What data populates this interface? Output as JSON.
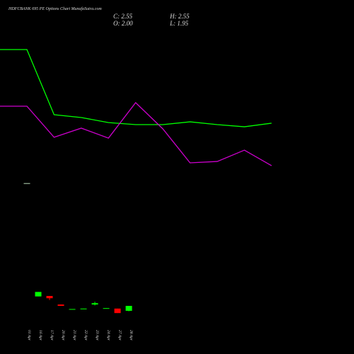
{
  "chart_data": {
    "type": "candlestick",
    "title": "HDFCBANK 695 PE Options  Chart MunafaSutra.com",
    "ohlc_labels": {
      "close": "C: 2.55",
      "high": "H: 2.55",
      "open": "O: 2.00",
      "low": "L: 1.95"
    },
    "categories": [
      "01 Apr",
      "16 Apr",
      "17 Apr",
      "20 Apr",
      "21 Apr",
      "22 Apr",
      "23 Apr",
      "24 Apr",
      "27 Apr",
      "28 Apr"
    ],
    "open": [
      16.2,
      3.6,
      3.65,
      2.7,
      2.15,
      2.2,
      2.7,
      2.25,
      2.25,
      2.0
    ],
    "high": [
      16.2,
      4.1,
      3.65,
      2.7,
      2.2,
      2.25,
      3.0,
      2.3,
      2.25,
      2.55
    ],
    "low": [
      16.2,
      3.6,
      3.2,
      2.55,
      2.15,
      2.2,
      2.6,
      2.25,
      1.75,
      1.95
    ],
    "close": [
      16.2,
      4.1,
      3.4,
      2.55,
      2.2,
      2.25,
      2.85,
      2.3,
      1.75,
      2.55
    ],
    "up_color": "#00ff00",
    "down_color": "#ff0000",
    "series": [
      {
        "color": "#00ff00",
        "values": [
          31.06,
          23.81,
          23.5,
          22.94,
          22.71,
          22.71,
          23.02,
          22.71,
          22.47,
          22.87
        ]
      },
      {
        "color": "#cc00cc",
        "values": [
          24.76,
          21.3,
          22.32,
          21.21,
          25.15,
          22.24,
          18.46,
          18.61,
          19.87,
          18.14
        ]
      }
    ],
    "ylim": [
      0,
      36.57
    ]
  }
}
